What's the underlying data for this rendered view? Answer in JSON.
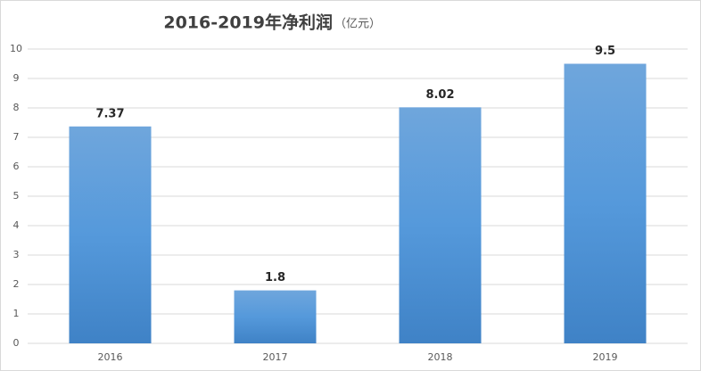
{
  "chart_data": {
    "type": "bar",
    "title": "2016-2019年净利润",
    "unit_label": "（亿元）",
    "categories": [
      "2016",
      "2017",
      "2018",
      "2019"
    ],
    "values": [
      7.37,
      1.8,
      8.02,
      9.5
    ],
    "color": "#5b9bd5",
    "ylim": [
      0,
      10
    ],
    "yticks": [
      0,
      1,
      2,
      3,
      4,
      5,
      6,
      7,
      8,
      9,
      10
    ],
    "grid": true
  }
}
